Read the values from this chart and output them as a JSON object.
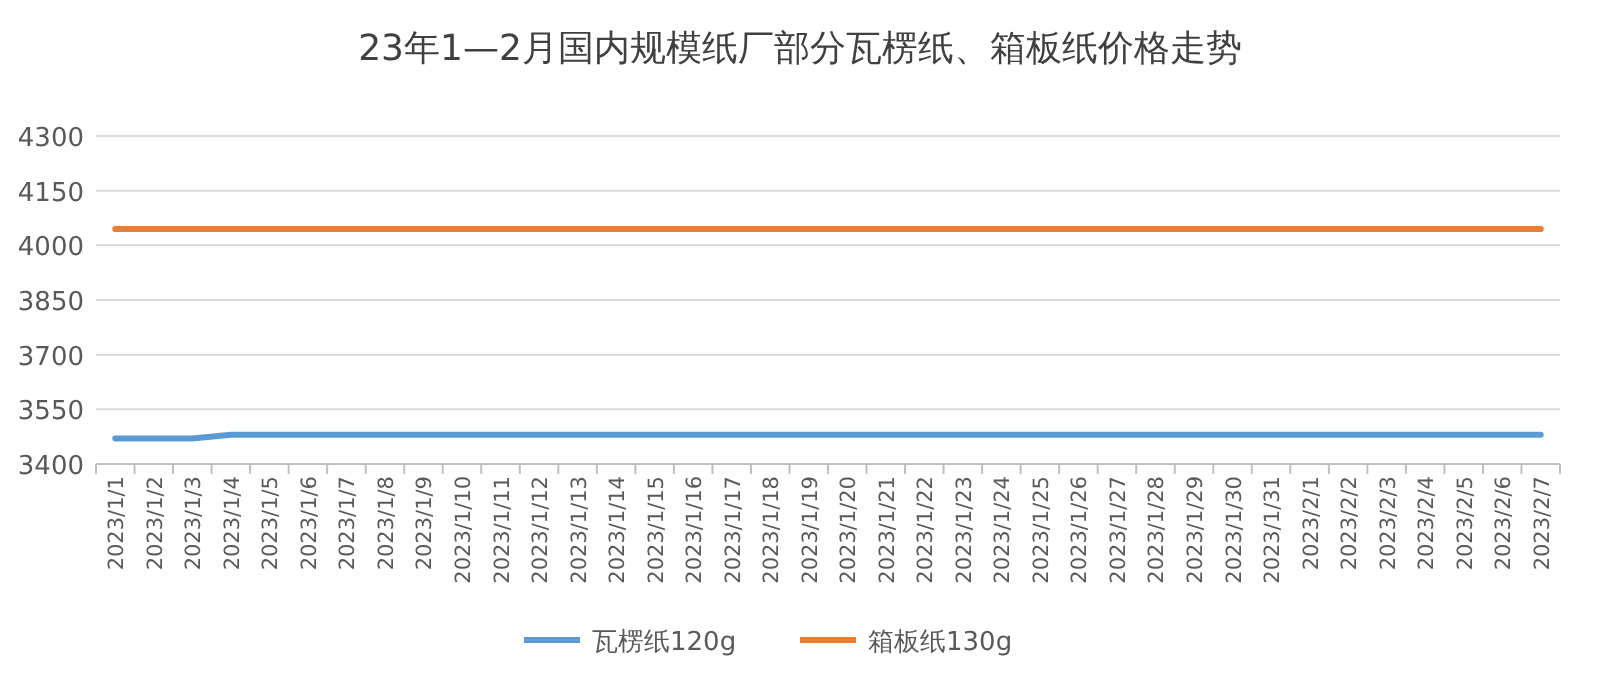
{
  "chart_data": {
    "type": "line",
    "title": "23年1—2月国内规模纸厂部分瓦楞纸、箱板纸价格走势",
    "categories": [
      "2023/1/1",
      "2023/1/2",
      "2023/1/3",
      "2023/1/4",
      "2023/1/5",
      "2023/1/6",
      "2023/1/7",
      "2023/1/8",
      "2023/1/9",
      "2023/1/10",
      "2023/1/11",
      "2023/1/12",
      "2023/1/13",
      "2023/1/14",
      "2023/1/15",
      "2023/1/16",
      "2023/1/17",
      "2023/1/18",
      "2023/1/19",
      "2023/1/20",
      "2023/1/21",
      "2023/1/22",
      "2023/1/23",
      "2023/1/24",
      "2023/1/25",
      "2023/1/26",
      "2023/1/27",
      "2023/1/28",
      "2023/1/29",
      "2023/1/30",
      "2023/1/31",
      "2023/2/1",
      "2023/2/2",
      "2023/2/3",
      "2023/2/4",
      "2023/2/5",
      "2023/2/6",
      "2023/2/7"
    ],
    "series": [
      {
        "name": "瓦楞纸120g",
        "color": "#5b9bd5",
        "values": [
          3470,
          3470,
          3470,
          3480,
          3480,
          3480,
          3480,
          3480,
          3480,
          3480,
          3480,
          3480,
          3480,
          3480,
          3480,
          3480,
          3480,
          3480,
          3480,
          3480,
          3480,
          3480,
          3480,
          3480,
          3480,
          3480,
          3480,
          3480,
          3480,
          3480,
          3480,
          3480,
          3480,
          3480,
          3480,
          3480,
          3480,
          3480
        ]
      },
      {
        "name": "箱板纸130g",
        "color": "#ed7d31",
        "values": [
          4045,
          4045,
          4045,
          4045,
          4045,
          4045,
          4045,
          4045,
          4045,
          4045,
          4045,
          4045,
          4045,
          4045,
          4045,
          4045,
          4045,
          4045,
          4045,
          4045,
          4045,
          4045,
          4045,
          4045,
          4045,
          4045,
          4045,
          4045,
          4045,
          4045,
          4045,
          4045,
          4045,
          4045,
          4045,
          4045,
          4045,
          4045
        ]
      }
    ],
    "ylim": [
      3400,
      4300
    ],
    "yticks": [
      3400,
      3550,
      3700,
      3850,
      4000,
      4150,
      4300
    ],
    "grid": "y",
    "legend": "bottom"
  }
}
